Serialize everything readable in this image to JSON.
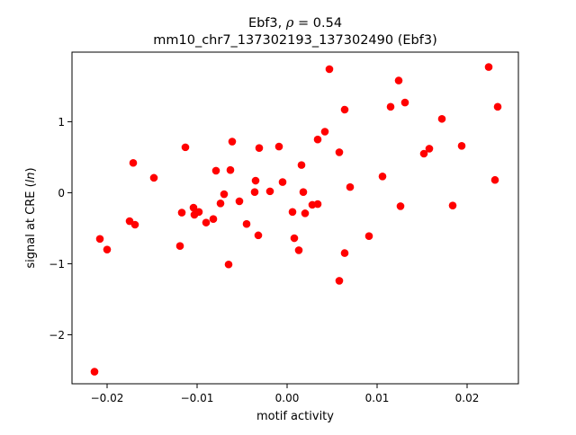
{
  "chart_data": {
    "type": "scatter",
    "title_line1_prefix": "Ebf3, ",
    "title_rho_symbol": "ρ",
    "title_rho_value": " = 0.54",
    "title_line2": "mm10_chr7_137302193_137302490 (Ebf3)",
    "xlabel": "motif activity",
    "ylabel_prefix": "signal at CRE (",
    "ylabel_italic": "ln",
    "ylabel_suffix": ")",
    "xlim": [
      -0.0239,
      0.0257
    ],
    "ylim": [
      -2.69,
      1.98
    ],
    "xticks": [
      {
        "value": -0.02,
        "label": "−0.02"
      },
      {
        "value": -0.01,
        "label": "−0.01"
      },
      {
        "value": 0.0,
        "label": "0.00"
      },
      {
        "value": 0.01,
        "label": "0.01"
      },
      {
        "value": 0.02,
        "label": "0.02"
      }
    ],
    "yticks": [
      {
        "value": -2,
        "label": "−2"
      },
      {
        "value": -1,
        "label": "−1"
      },
      {
        "value": 0,
        "label": "0"
      },
      {
        "value": 1,
        "label": "1"
      }
    ],
    "grid": false,
    "marker_color": "#ff0000",
    "points": [
      {
        "x": -0.0214,
        "y": -2.52
      },
      {
        "x": -0.0208,
        "y": -0.65
      },
      {
        "x": -0.02,
        "y": -0.8
      },
      {
        "x": -0.0175,
        "y": -0.4
      },
      {
        "x": -0.0171,
        "y": 0.42
      },
      {
        "x": -0.0169,
        "y": -0.45
      },
      {
        "x": -0.0148,
        "y": 0.21
      },
      {
        "x": -0.0119,
        "y": -0.75
      },
      {
        "x": -0.0117,
        "y": -0.28
      },
      {
        "x": -0.0113,
        "y": 0.64
      },
      {
        "x": -0.0104,
        "y": -0.21
      },
      {
        "x": -0.0103,
        "y": -0.31
      },
      {
        "x": -0.0098,
        "y": -0.27
      },
      {
        "x": -0.009,
        "y": -0.42
      },
      {
        "x": -0.0082,
        "y": -0.37
      },
      {
        "x": -0.0079,
        "y": 0.31
      },
      {
        "x": -0.0074,
        "y": -0.15
      },
      {
        "x": -0.007,
        "y": -0.02
      },
      {
        "x": -0.0065,
        "y": -1.01
      },
      {
        "x": -0.0063,
        "y": 0.32
      },
      {
        "x": -0.0061,
        "y": 0.72
      },
      {
        "x": -0.0053,
        "y": -0.12
      },
      {
        "x": -0.0045,
        "y": -0.44
      },
      {
        "x": -0.0036,
        "y": 0.01
      },
      {
        "x": -0.0035,
        "y": 0.17
      },
      {
        "x": -0.0032,
        "y": -0.6
      },
      {
        "x": -0.0031,
        "y": 0.63
      },
      {
        "x": -0.0019,
        "y": 0.02
      },
      {
        "x": -0.0009,
        "y": 0.65
      },
      {
        "x": -0.0005,
        "y": 0.15
      },
      {
        "x": 0.0006,
        "y": -0.27
      },
      {
        "x": 0.0008,
        "y": -0.64
      },
      {
        "x": 0.0013,
        "y": -0.81
      },
      {
        "x": 0.0016,
        "y": 0.39
      },
      {
        "x": 0.0018,
        "y": 0.01
      },
      {
        "x": 0.002,
        "y": -0.29
      },
      {
        "x": 0.0028,
        "y": -0.17
      },
      {
        "x": 0.0034,
        "y": 0.75
      },
      {
        "x": 0.0034,
        "y": -0.16
      },
      {
        "x": 0.0042,
        "y": 0.86
      },
      {
        "x": 0.0047,
        "y": 1.74
      },
      {
        "x": 0.0058,
        "y": 0.57
      },
      {
        "x": 0.0058,
        "y": -1.24
      },
      {
        "x": 0.0064,
        "y": 1.17
      },
      {
        "x": 0.0064,
        "y": -0.85
      },
      {
        "x": 0.007,
        "y": 0.08
      },
      {
        "x": 0.0091,
        "y": -0.61
      },
      {
        "x": 0.0106,
        "y": 0.23
      },
      {
        "x": 0.0115,
        "y": 1.21
      },
      {
        "x": 0.0124,
        "y": 1.58
      },
      {
        "x": 0.0126,
        "y": -0.19
      },
      {
        "x": 0.0131,
        "y": 1.27
      },
      {
        "x": 0.0152,
        "y": 0.55
      },
      {
        "x": 0.0158,
        "y": 0.62
      },
      {
        "x": 0.0172,
        "y": 1.04
      },
      {
        "x": 0.0184,
        "y": -0.18
      },
      {
        "x": 0.0194,
        "y": 0.66
      },
      {
        "x": 0.0224,
        "y": 1.77
      },
      {
        "x": 0.0231,
        "y": 0.18
      },
      {
        "x": 0.0234,
        "y": 1.21
      }
    ]
  }
}
